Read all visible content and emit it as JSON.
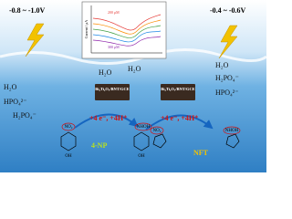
{
  "left_potential": "-0.8 ~ -1.0V",
  "right_potential": "-0.4 ~ -0.6V",
  "inset": {
    "y_label": "Current / μA",
    "labels": [
      "200 μM",
      "300 μM"
    ]
  },
  "center_water": [
    "H₂O",
    "H₂O"
  ],
  "left_species": [
    "H₂O",
    "HPO₄²⁻",
    "H₂PO₄⁻"
  ],
  "right_species": [
    "H₂O",
    "H₂PO₄⁻",
    "HPO₄²⁻"
  ],
  "electrode_labels": [
    "Bi₂Ti₂O₇/BNT/GCE",
    "Bi₂Ti₂O₇/BNT/GCE"
  ],
  "reactions": [
    "+4 e⁻, +4H⁺",
    "+4 e⁻, +4H⁺"
  ],
  "left_molecule": {
    "groups": [
      "NO₂",
      "NHOH",
      "OH",
      "OH"
    ],
    "name": "4-NP"
  },
  "right_molecule": {
    "groups": [
      "NO₂",
      "NHOH"
    ],
    "name": "NFT"
  }
}
